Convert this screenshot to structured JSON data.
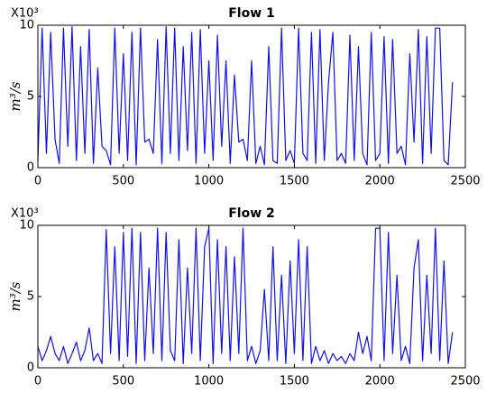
{
  "chart_data": [
    {
      "type": "line",
      "title": "Flow 1",
      "y_label": "m³/s",
      "y_multiplier": "X10³",
      "x": [
        0,
        25,
        50,
        75,
        100,
        125,
        150,
        175,
        200,
        225,
        250,
        275,
        300,
        325,
        350,
        375,
        400,
        425,
        450,
        475,
        500,
        525,
        550,
        575,
        600,
        625,
        650,
        675,
        700,
        725,
        750,
        775,
        800,
        825,
        850,
        875,
        900,
        925,
        950,
        975,
        1000,
        1025,
        1050,
        1075,
        1100,
        1125,
        1150,
        1175,
        1200,
        1225,
        1250,
        1275,
        1300,
        1325,
        1350,
        1375,
        1400,
        1425,
        1450,
        1475,
        1500,
        1525,
        1550,
        1575,
        1600,
        1625,
        1650,
        1675,
        1700,
        1725,
        1750,
        1775,
        1800,
        1825,
        1850,
        1875,
        1900,
        1925,
        1950,
        1975,
        2000,
        2025,
        2050,
        2075,
        2100,
        2125,
        2150,
        2175,
        2200,
        2225,
        2250,
        2275,
        2300,
        2325,
        2350,
        2375,
        2400,
        2425
      ],
      "values": [
        0.5,
        9.8,
        1,
        9.5,
        2,
        0.3,
        9.8,
        1.5,
        9.9,
        0.5,
        8.5,
        1,
        9.7,
        0.3,
        7,
        1.5,
        1.2,
        0.2,
        9.8,
        1,
        8,
        0.5,
        9.5,
        0.2,
        9.8,
        1.8,
        2,
        1,
        9,
        0.3,
        9.9,
        1,
        9.8,
        0.5,
        8.5,
        1.2,
        9.5,
        0.3,
        9.7,
        1,
        7.5,
        0.5,
        9.3,
        1.5,
        7.5,
        0.3,
        6.5,
        1.8,
        2,
        0.5,
        7.5,
        0.3,
        1.5,
        0.2,
        8.5,
        0.5,
        0.3,
        9.8,
        0.5,
        1.2,
        0.3,
        9.8,
        1,
        0.5,
        9.5,
        0.3,
        9.7,
        0.5,
        6,
        9.5,
        0.5,
        1,
        0.3,
        9.3,
        0.5,
        8.5,
        1,
        0.2,
        9.5,
        0.5,
        1,
        9.2,
        0.3,
        9,
        1,
        1.5,
        0.2,
        8,
        1.8,
        9.7,
        0.3,
        9.2,
        1,
        9.8,
        9.8,
        0.5,
        0.2,
        6
      ],
      "color": "#1010f0",
      "xlim": [
        0,
        2500
      ],
      "xticks": [
        0,
        500,
        1000,
        1500,
        2000,
        2500
      ],
      "ylim": [
        0,
        10
      ],
      "yticks": [
        0,
        5,
        10
      ]
    },
    {
      "type": "line",
      "title": "Flow 2",
      "y_label": "m³/s",
      "y_multiplier": "X10³",
      "x": [
        0,
        25,
        50,
        75,
        100,
        125,
        150,
        175,
        200,
        225,
        250,
        275,
        300,
        325,
        350,
        375,
        400,
        425,
        450,
        475,
        500,
        525,
        550,
        575,
        600,
        625,
        650,
        675,
        700,
        725,
        750,
        775,
        800,
        825,
        850,
        875,
        900,
        925,
        950,
        975,
        1000,
        1025,
        1050,
        1075,
        1100,
        1125,
        1150,
        1175,
        1200,
        1225,
        1250,
        1275,
        1300,
        1325,
        1350,
        1375,
        1400,
        1425,
        1450,
        1475,
        1500,
        1525,
        1550,
        1575,
        1600,
        1625,
        1650,
        1675,
        1700,
        1725,
        1750,
        1775,
        1800,
        1825,
        1850,
        1875,
        1900,
        1925,
        1950,
        1975,
        2000,
        2025,
        2050,
        2075,
        2100,
        2125,
        2150,
        2175,
        2200,
        2225,
        2250,
        2275,
        2300,
        2325,
        2350,
        2375,
        2400,
        2425
      ],
      "values": [
        1.5,
        0.5,
        1.2,
        2.2,
        1,
        0.5,
        1.5,
        0.3,
        1,
        1.8,
        0.5,
        1.2,
        2.8,
        0.5,
        1,
        0.3,
        9.7,
        1,
        8.5,
        0.5,
        9.5,
        0.8,
        9.8,
        0.3,
        9.5,
        0.5,
        7,
        1,
        9.8,
        0.5,
        9.5,
        1.2,
        0.5,
        9,
        0.3,
        7,
        1,
        9.8,
        0.5,
        8.5,
        9.8,
        0.3,
        9,
        1,
        8.5,
        0.5,
        7.8,
        1,
        9.8,
        0.5,
        1.5,
        0.3,
        1.2,
        5.5,
        0.5,
        8.5,
        0.5,
        6.5,
        0.3,
        7.5,
        1,
        9,
        0.5,
        8.5,
        0.3,
        1.5,
        0.5,
        1.2,
        0.3,
        1,
        0.5,
        0.8,
        0.3,
        1,
        0.5,
        2.5,
        1,
        2.2,
        0.5,
        9.8,
        9.8,
        0.5,
        9.5,
        1,
        6.5,
        0.5,
        1.5,
        0.3,
        7,
        9,
        0.5,
        6.5,
        1,
        9.8,
        0.5,
        7.5,
        0.3,
        2.5
      ],
      "color": "#1010f0",
      "xlim": [
        0,
        2500
      ],
      "xticks": [
        0,
        500,
        1000,
        1500,
        2000,
        2500
      ],
      "ylim": [
        0,
        10
      ],
      "yticks": [
        0,
        5,
        10
      ]
    }
  ]
}
